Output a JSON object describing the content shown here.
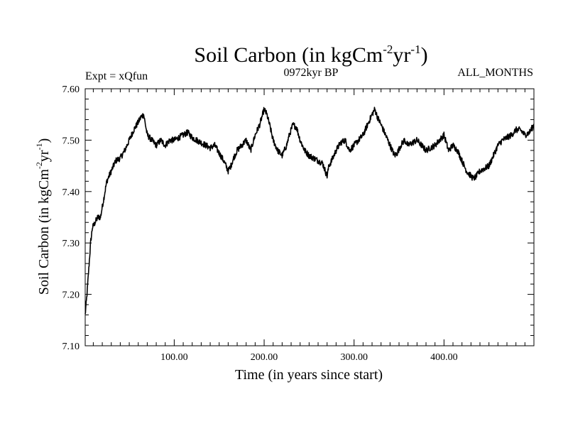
{
  "chart_data": {
    "type": "line",
    "title": {
      "base": "Soil Carbon (in kgCm",
      "sup1": "-2",
      "mid": "yr",
      "sup2": "-1",
      "end": ")"
    },
    "left_label": "Expt = xQfun",
    "subtitle": "0972kyr BP",
    "right_label": "ALL_MONTHS",
    "xlabel": "Time (in years since start)",
    "ylabel": {
      "base": "Soil Carbon (in kgCm",
      "sup1": "-2",
      "mid": "yr",
      "sup2": "-1",
      "end": ")"
    },
    "xlim": [
      1,
      500
    ],
    "ylim": [
      7.1,
      7.6
    ],
    "xticks": [
      100,
      200,
      300,
      400
    ],
    "xtick_labels": [
      "100.00",
      "200.00",
      "300.00",
      "400.00"
    ],
    "yticks": [
      7.1,
      7.2,
      7.3,
      7.4,
      7.5,
      7.6
    ],
    "ytick_labels": [
      "7.10",
      "7.20",
      "7.30",
      "7.40",
      "7.50",
      "7.60"
    ],
    "series": [
      {
        "name": "Soil Carbon",
        "x": [
          1,
          3,
          5,
          7,
          9,
          12,
          15,
          18,
          21,
          25,
          30,
          35,
          40,
          45,
          50,
          55,
          60,
          63,
          66,
          68,
          70,
          75,
          80,
          85,
          90,
          95,
          100,
          105,
          110,
          115,
          120,
          125,
          130,
          135,
          140,
          145,
          150,
          155,
          160,
          163,
          166,
          170,
          175,
          180,
          185,
          190,
          195,
          200,
          203,
          206,
          210,
          215,
          220,
          225,
          228,
          232,
          236,
          240,
          245,
          250,
          255,
          260,
          265,
          270,
          272,
          275,
          280,
          285,
          290,
          295,
          300,
          305,
          310,
          315,
          320,
          323,
          326,
          330,
          335,
          340,
          345,
          348,
          352,
          356,
          360,
          365,
          370,
          375,
          380,
          385,
          390,
          395,
          400,
          405,
          410,
          415,
          420,
          425,
          430,
          433,
          436,
          440,
          445,
          450,
          455,
          460,
          465,
          470,
          475,
          480,
          485,
          490,
          495,
          500
        ],
        "y": [
          7.16,
          7.2,
          7.25,
          7.3,
          7.33,
          7.34,
          7.35,
          7.35,
          7.38,
          7.42,
          7.44,
          7.46,
          7.465,
          7.48,
          7.5,
          7.52,
          7.535,
          7.545,
          7.55,
          7.53,
          7.51,
          7.5,
          7.49,
          7.5,
          7.49,
          7.5,
          7.5,
          7.505,
          7.51,
          7.515,
          7.505,
          7.5,
          7.495,
          7.49,
          7.485,
          7.49,
          7.475,
          7.46,
          7.44,
          7.45,
          7.465,
          7.48,
          7.49,
          7.5,
          7.48,
          7.51,
          7.53,
          7.56,
          7.55,
          7.53,
          7.5,
          7.48,
          7.47,
          7.49,
          7.51,
          7.53,
          7.525,
          7.5,
          7.48,
          7.47,
          7.465,
          7.46,
          7.455,
          7.43,
          7.45,
          7.46,
          7.48,
          7.495,
          7.5,
          7.48,
          7.49,
          7.5,
          7.51,
          7.53,
          7.55,
          7.56,
          7.545,
          7.53,
          7.51,
          7.49,
          7.47,
          7.475,
          7.49,
          7.5,
          7.49,
          7.495,
          7.5,
          7.49,
          7.48,
          7.485,
          7.49,
          7.5,
          7.51,
          7.48,
          7.49,
          7.48,
          7.46,
          7.44,
          7.43,
          7.425,
          7.43,
          7.44,
          7.445,
          7.45,
          7.47,
          7.49,
          7.5,
          7.505,
          7.51,
          7.52,
          7.52,
          7.51,
          7.515,
          7.53
        ]
      }
    ]
  },
  "colors": {
    "line": "#000000",
    "axis": "#000000",
    "background": "#ffffff"
  }
}
